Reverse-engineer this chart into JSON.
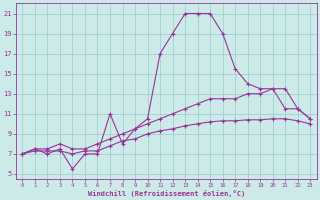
{
  "xlabel": "Windchill (Refroidissement éolien,°C)",
  "bg_color": "#cceae7",
  "grid_color": "#99cccc",
  "line_color": "#993399",
  "xlim": [
    -0.5,
    23.5
  ],
  "ylim": [
    4.5,
    22
  ],
  "xticks": [
    0,
    1,
    2,
    3,
    4,
    5,
    6,
    7,
    8,
    9,
    10,
    11,
    12,
    13,
    14,
    15,
    16,
    17,
    18,
    19,
    20,
    21,
    22,
    23
  ],
  "yticks": [
    5,
    7,
    9,
    11,
    13,
    15,
    17,
    19,
    21
  ],
  "curve1_x": [
    0,
    1,
    2,
    3,
    4,
    5,
    6,
    7,
    8,
    9,
    10,
    11,
    12,
    13,
    14,
    15,
    16,
    17,
    18,
    19,
    20,
    21,
    22,
    23
  ],
  "curve1_y": [
    7.0,
    7.5,
    7.0,
    7.5,
    5.5,
    7.0,
    7.0,
    11.0,
    8.0,
    9.5,
    10.5,
    17.0,
    19.0,
    21.0,
    21.0,
    21.0,
    19.0,
    15.5,
    14.0,
    13.5,
    13.5,
    11.5,
    11.5,
    10.5
  ],
  "curve2_x": [
    0,
    1,
    2,
    3,
    4,
    5,
    6,
    7,
    8,
    9,
    10,
    11,
    12,
    13,
    14,
    15,
    16,
    17,
    18,
    19,
    20,
    21,
    22,
    23
  ],
  "curve2_y": [
    7.0,
    7.5,
    7.5,
    8.0,
    7.5,
    7.5,
    8.0,
    8.5,
    9.0,
    9.5,
    10.0,
    10.5,
    11.0,
    11.5,
    12.0,
    12.5,
    12.5,
    12.5,
    13.0,
    13.0,
    13.5,
    13.5,
    11.5,
    10.5
  ],
  "curve3_x": [
    0,
    1,
    2,
    3,
    4,
    5,
    6,
    7,
    8,
    9,
    10,
    11,
    12,
    13,
    14,
    15,
    16,
    17,
    18,
    19,
    20,
    21,
    22,
    23
  ],
  "curve3_y": [
    7.0,
    7.3,
    7.3,
    7.3,
    7.0,
    7.3,
    7.3,
    7.8,
    8.3,
    8.5,
    9.0,
    9.3,
    9.5,
    9.8,
    10.0,
    10.2,
    10.3,
    10.3,
    10.4,
    10.4,
    10.5,
    10.5,
    10.3,
    10.0
  ]
}
